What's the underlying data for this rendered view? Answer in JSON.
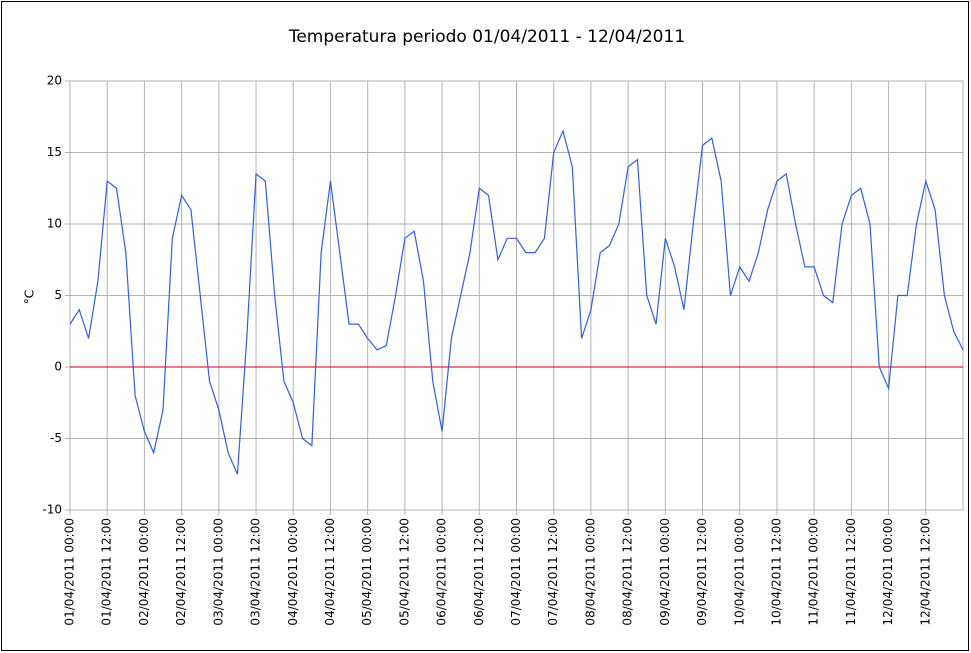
{
  "chart_data": {
    "type": "line",
    "title": "Temperatura periodo 01/04/2011 - 12/04/2011",
    "ylabel": "°C",
    "x": [
      0,
      3,
      6,
      9,
      12,
      15,
      18,
      21,
      24,
      27,
      30,
      33,
      36,
      39,
      42,
      45,
      48,
      51,
      54,
      57,
      60,
      63,
      66,
      69,
      72,
      75,
      78,
      81,
      84,
      87,
      90,
      93,
      96,
      99,
      102,
      105,
      108,
      111,
      114,
      117,
      120,
      123,
      126,
      129,
      132,
      135,
      138,
      141,
      144,
      147,
      150,
      153,
      156,
      159,
      162,
      165,
      168,
      171,
      174,
      177,
      180,
      183,
      186,
      189,
      192,
      195,
      198,
      201,
      204,
      207,
      210,
      213,
      216,
      219,
      222,
      225,
      228,
      231,
      234,
      237,
      240,
      243,
      246,
      249,
      252,
      255,
      258,
      261,
      264,
      267,
      270,
      273,
      276,
      279,
      282,
      285,
      288
    ],
    "series": [
      {
        "name": "Temperatura",
        "color": "#3060e0",
        "values": [
          3,
          4,
          2,
          6,
          13,
          12.5,
          8,
          -2,
          -4.5,
          -6,
          -3,
          9,
          12,
          11,
          5,
          -1,
          -3,
          -6,
          -7.5,
          2,
          13.5,
          13,
          5,
          -1,
          -2.5,
          -5,
          -5.5,
          8,
          13,
          8,
          3,
          3,
          2,
          1.2,
          1.5,
          5,
          9,
          9.5,
          6,
          -1,
          -4.5,
          2,
          5,
          8,
          12.5,
          12,
          7.5,
          9,
          9,
          8,
          8,
          9,
          15,
          16.5,
          14,
          2,
          4,
          8,
          8.5,
          10,
          14,
          14.5,
          5,
          3,
          9,
          7,
          4,
          10,
          15.5,
          16,
          13,
          5,
          7,
          6,
          8,
          11,
          13,
          13.5,
          10,
          7,
          7,
          5,
          4.5,
          10,
          12,
          12.5,
          10,
          0,
          -1.5,
          5,
          5,
          10,
          13,
          11,
          5,
          2.5,
          1.2
        ]
      }
    ],
    "xlim": [
      0,
      288
    ],
    "ylim": [
      -10,
      20
    ],
    "yticks": [
      -10,
      -5,
      0,
      5,
      10,
      15,
      20
    ],
    "xticks": [
      {
        "value": 0,
        "label": "01/04/2011 00:00"
      },
      {
        "value": 12,
        "label": "01/04/2011 12:00"
      },
      {
        "value": 24,
        "label": "02/04/2011 00:00"
      },
      {
        "value": 36,
        "label": "02/04/2011 12:00"
      },
      {
        "value": 48,
        "label": "03/04/2011 00:00"
      },
      {
        "value": 60,
        "label": "03/04/2011 12:00"
      },
      {
        "value": 72,
        "label": "04/04/2011 00:00"
      },
      {
        "value": 84,
        "label": "04/04/2011 12:00"
      },
      {
        "value": 96,
        "label": "05/04/2011 00:00"
      },
      {
        "value": 108,
        "label": "05/04/2011 12:00"
      },
      {
        "value": 120,
        "label": "06/04/2011 00:00"
      },
      {
        "value": 132,
        "label": "06/04/2011 12:00"
      },
      {
        "value": 144,
        "label": "07/04/2011 00:00"
      },
      {
        "value": 156,
        "label": "07/04/2011 12:00"
      },
      {
        "value": 168,
        "label": "08/04/2011 00:00"
      },
      {
        "value": 180,
        "label": "08/04/2011 12:00"
      },
      {
        "value": 192,
        "label": "09/04/2011 00:00"
      },
      {
        "value": 204,
        "label": "09/04/2011 12:00"
      },
      {
        "value": 216,
        "label": "10/04/2011 00:00"
      },
      {
        "value": 228,
        "label": "10/04/2011 12:00"
      },
      {
        "value": 240,
        "label": "11/04/2011 00:00"
      },
      {
        "value": 252,
        "label": "11/04/2011 12:00"
      },
      {
        "value": 264,
        "label": "12/04/2011 00:00"
      },
      {
        "value": 276,
        "label": "12/04/2011 12:00"
      }
    ],
    "grid": true,
    "reference_line": {
      "value": 0,
      "color": "#cc0000"
    }
  }
}
